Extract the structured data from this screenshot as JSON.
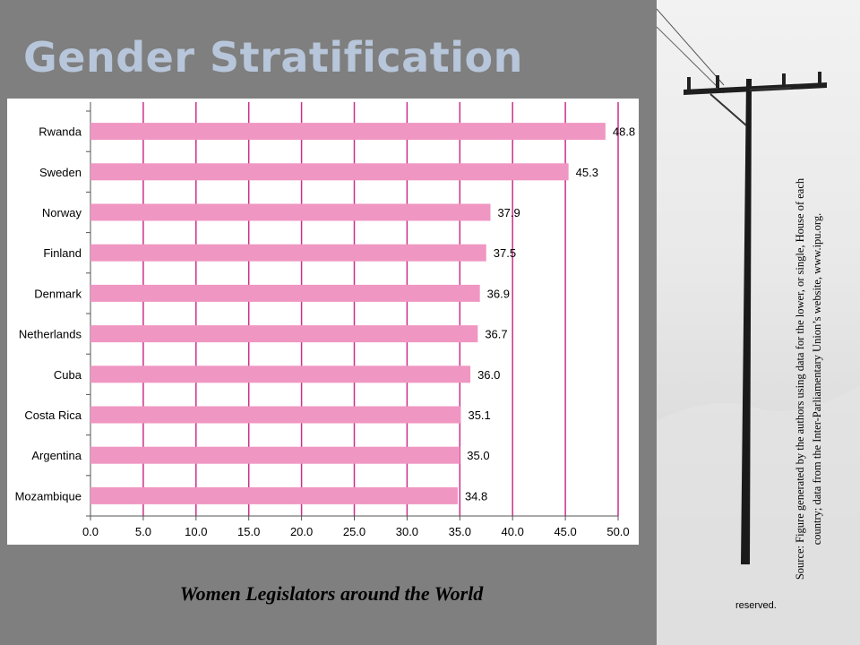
{
  "slide": {
    "title": "Gender Stratification",
    "caption": "Women Legislators around the World",
    "source_note": "Source: Figure generated by the authors using data for the lower, or single, House of each country; data from the Inter-Parliamentary Union’s website, www.ipu.org.",
    "reserved_note": "reserved."
  },
  "colors": {
    "background": "#7f7f7f",
    "title": "#b7c6da",
    "bar": "#f096c2",
    "gridline": "#cc2f8a"
  },
  "chart_data": {
    "type": "bar",
    "orientation": "horizontal",
    "categories": [
      "Rwanda",
      "Sweden",
      "Norway",
      "Finland",
      "Denmark",
      "Netherlands",
      "Cuba",
      "Costa Rica",
      "Argentina",
      "Mozambique"
    ],
    "values": [
      48.8,
      45.3,
      37.9,
      37.5,
      36.9,
      36.7,
      36.0,
      35.1,
      35.0,
      34.8
    ],
    "value_labels": [
      "48.8",
      "45.3",
      "37.9",
      "37.5",
      "36.9",
      "36.7",
      "36.0",
      "35.1",
      "35.0",
      "34.8"
    ],
    "xlim": [
      0,
      50
    ],
    "xticks": [
      0,
      5,
      10,
      15,
      20,
      25,
      30,
      35,
      40,
      45,
      50
    ],
    "xtick_labels": [
      "0.0",
      "5.0",
      "10.0",
      "15.0",
      "20.0",
      "25.0",
      "30.0",
      "35.0",
      "40.0",
      "45.0",
      "50.0"
    ],
    "title": "",
    "xlabel": "",
    "ylabel": "",
    "grid": "vertical"
  }
}
